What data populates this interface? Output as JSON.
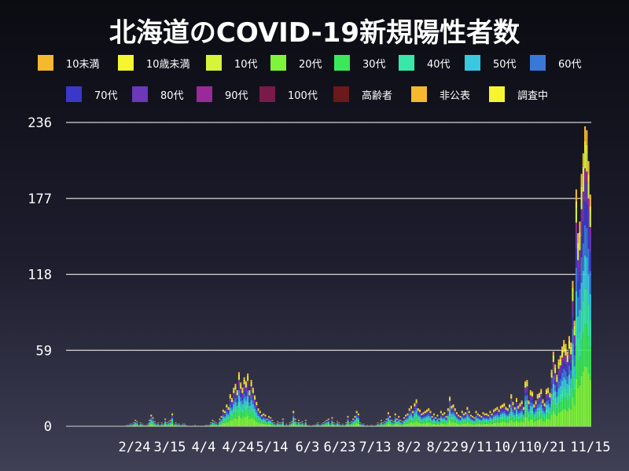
{
  "chart_data": {
    "type": "bar",
    "title": "北海道のCOVID-19新規陽性者数",
    "stacked": true,
    "grid": true,
    "ylim": [
      0,
      236
    ],
    "yticks": [
      0,
      59,
      118,
      177,
      236
    ],
    "xticks": [
      "2/24",
      "3/15",
      "4/4",
      "4/24",
      "5/14",
      "6/3",
      "6/23",
      "7/13",
      "8/2",
      "8/22",
      "9/11",
      "10/1",
      "10/21",
      "11/15"
    ],
    "legend_position": "top",
    "series": [
      {
        "name": "10未満",
        "color": "#f5b82e"
      },
      {
        "name": "10歳未満",
        "color": "#f5f530"
      },
      {
        "name": "10代",
        "color": "#d6f53a"
      },
      {
        "name": "20代",
        "color": "#7ef53a"
      },
      {
        "name": "30代",
        "color": "#3ae85a"
      },
      {
        "name": "40代",
        "color": "#38e8a8"
      },
      {
        "name": "50代",
        "color": "#38c8e0"
      },
      {
        "name": "60代",
        "color": "#3a78d8"
      },
      {
        "name": "70代",
        "color": "#3a38c8"
      },
      {
        "name": "80代",
        "color": "#6a38b8"
      },
      {
        "name": "90代",
        "color": "#9a2a9a"
      },
      {
        "name": "100代",
        "color": "#7a1a4a"
      },
      {
        "name": "高齢者",
        "color": "#6a1a1a"
      },
      {
        "name": "非公表",
        "color": "#f5b82e"
      },
      {
        "name": "調査中",
        "color": "#f5f530"
      }
    ],
    "daily_totals": [
      0,
      0,
      0,
      0,
      0,
      0,
      0,
      0,
      0,
      0,
      0,
      0,
      0,
      0,
      0,
      0,
      0,
      0,
      0,
      0,
      0,
      0,
      0,
      0,
      0,
      0,
      0,
      0,
      0,
      0,
      0,
      0,
      0,
      0,
      1,
      1,
      2,
      2,
      3,
      5,
      4,
      1,
      3,
      2,
      1,
      1,
      2,
      5,
      9,
      7,
      4,
      2,
      3,
      1,
      3,
      2,
      6,
      3,
      4,
      5,
      10,
      2,
      3,
      2,
      2,
      1,
      2,
      2,
      1,
      0,
      0,
      0,
      0,
      1,
      0,
      0,
      0,
      0,
      0,
      1,
      1,
      1,
      3,
      5,
      4,
      3,
      2,
      6,
      8,
      13,
      12,
      17,
      15,
      25,
      22,
      30,
      33,
      28,
      42,
      34,
      30,
      38,
      35,
      41,
      28,
      36,
      30,
      24,
      19,
      14,
      12,
      9,
      10,
      9,
      6,
      8,
      7,
      5,
      3,
      2,
      4,
      3,
      3,
      6,
      1,
      2,
      1,
      3,
      4,
      12,
      6,
      3,
      5,
      3,
      4,
      2,
      5,
      1,
      1,
      0,
      1,
      1,
      2,
      3,
      1,
      2,
      3,
      4,
      5,
      6,
      2,
      7,
      3,
      2,
      4,
      3,
      1,
      2,
      1,
      3,
      8,
      3,
      4,
      6,
      8,
      12,
      10,
      3,
      2,
      2,
      0,
      1,
      0,
      1,
      1,
      0,
      1,
      3,
      2,
      5,
      3,
      4,
      6,
      11,
      8,
      5,
      4,
      10,
      6,
      8,
      5,
      4,
      7,
      9,
      10,
      14,
      16,
      12,
      18,
      21,
      14,
      13,
      10,
      11,
      12,
      13,
      14,
      12,
      8,
      10,
      7,
      9,
      6,
      12,
      10,
      11,
      8,
      14,
      23,
      16,
      17,
      14,
      11,
      9,
      8,
      12,
      10,
      11,
      15,
      12,
      9,
      8,
      7,
      12,
      10,
      9,
      8,
      11,
      10,
      10,
      9,
      12,
      10,
      13,
      14,
      15,
      13,
      16,
      17,
      18,
      15,
      14,
      17,
      25,
      19,
      15,
      22,
      16,
      18,
      20,
      15,
      35,
      36,
      20,
      28,
      27,
      17,
      20,
      25,
      26,
      29,
      21,
      18,
      29,
      30,
      26,
      44,
      58,
      48,
      40,
      52,
      55,
      62,
      67,
      64,
      58,
      70,
      65,
      113,
      82,
      184,
      150,
      159,
      196,
      212,
      233,
      230,
      206,
      180
    ]
  }
}
